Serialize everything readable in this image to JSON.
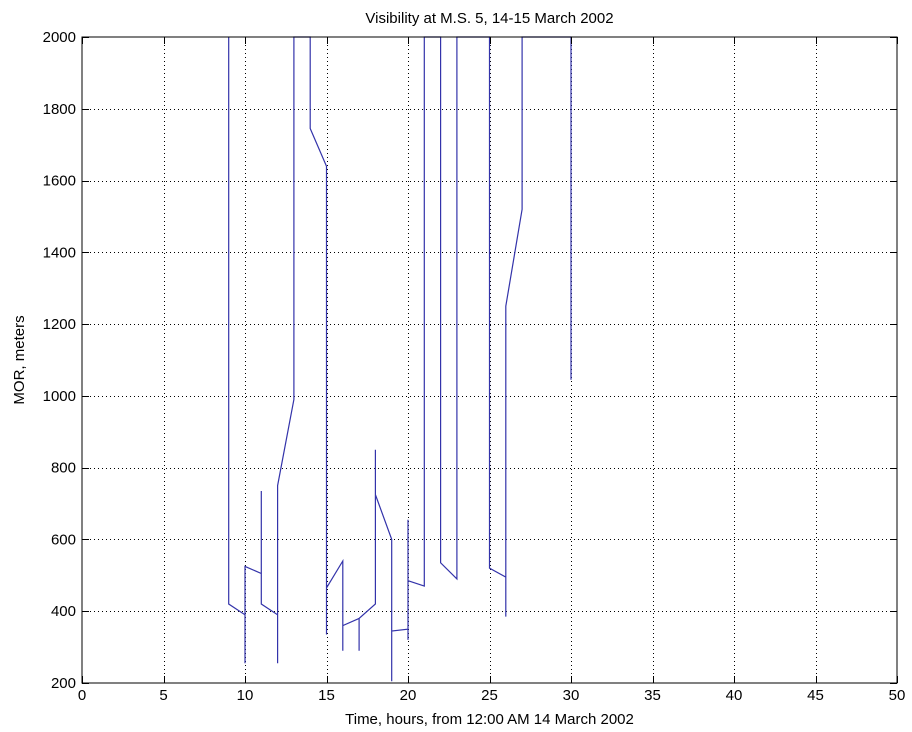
{
  "chart_data": {
    "type": "line",
    "title": "Visibility at M.S. 5, 14-15 March 2002",
    "xlabel": "Time, hours, from 12:00 AM 14 March 2002",
    "ylabel": "MOR, meters",
    "xlim": [
      0,
      50
    ],
    "ylim": [
      200,
      2000
    ],
    "xticks": [
      0,
      5,
      10,
      15,
      20,
      25,
      30,
      35,
      40,
      45,
      50
    ],
    "yticks": [
      200,
      400,
      600,
      800,
      1000,
      1200,
      1400,
      1600,
      1800,
      2000
    ],
    "grid": true,
    "grid_style": "dotted",
    "box": true,
    "line_color": "#3333aa",
    "series": [
      {
        "values": [
          [
            9,
            2000
          ],
          [
            9,
            420
          ],
          [
            10,
            390
          ],
          [
            10,
            255
          ],
          [
            10,
            525
          ],
          [
            11,
            505
          ],
          [
            11,
            735
          ],
          [
            11,
            420
          ],
          [
            12,
            390
          ],
          [
            12,
            255
          ],
          [
            12,
            750
          ],
          [
            13,
            990
          ],
          [
            13,
            2000
          ],
          [
            14,
            2000
          ],
          [
            14,
            1745
          ],
          [
            15,
            1640
          ],
          [
            15,
            335
          ],
          [
            15,
            465
          ],
          [
            16,
            540
          ],
          [
            16,
            290
          ],
          [
            16,
            360
          ],
          [
            17,
            380
          ],
          [
            17,
            290
          ],
          [
            17,
            380
          ],
          [
            18,
            420
          ],
          [
            18,
            850
          ],
          [
            18,
            725
          ],
          [
            19,
            600
          ],
          [
            19,
            205
          ],
          [
            19,
            345
          ],
          [
            20,
            350
          ],
          [
            20,
            320
          ],
          [
            20,
            655
          ],
          [
            20,
            485
          ],
          [
            21,
            470
          ],
          [
            21,
            2000
          ],
          [
            22,
            2000
          ],
          [
            22,
            535
          ],
          [
            23,
            490
          ],
          [
            23,
            2000
          ],
          [
            25,
            2000
          ],
          [
            25,
            520
          ],
          [
            26,
            495
          ],
          [
            26,
            385
          ],
          [
            26,
            1250
          ],
          [
            27,
            1520
          ],
          [
            27,
            2000
          ],
          [
            30,
            2000
          ],
          [
            30,
            1045
          ]
        ]
      }
    ]
  }
}
